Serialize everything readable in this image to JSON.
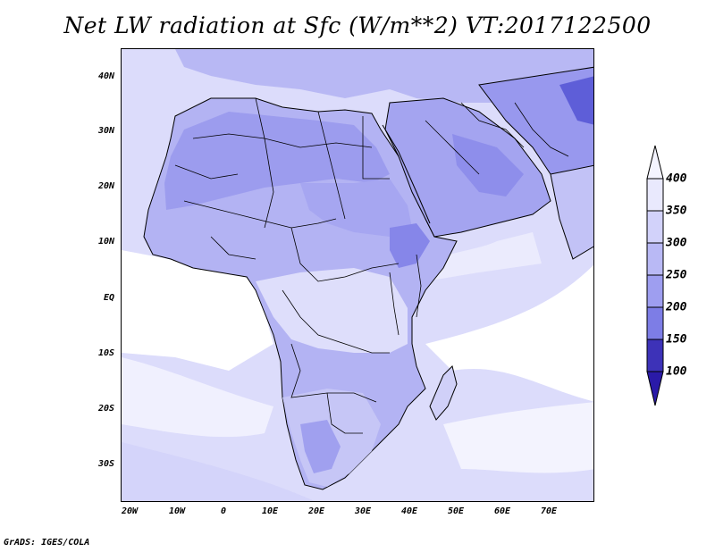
{
  "title": "Net LW radiation at Sfc (W/m**2) VT:2017122500",
  "footer": "GrADS: IGES/COLA",
  "axes": {
    "lat_labels": [
      "40N",
      "30N",
      "20N",
      "10N",
      "EQ",
      "10S",
      "20S",
      "30S"
    ],
    "lon_labels": [
      "20W",
      "10W",
      "0",
      "10E",
      "20E",
      "30E",
      "40E",
      "50E",
      "60E",
      "70E"
    ]
  },
  "colorbar": {
    "labels": [
      "400",
      "350",
      "300",
      "250",
      "200",
      "150",
      "100"
    ],
    "colors": [
      "#e9e9fd",
      "#d2d2fa",
      "#b9b9f5",
      "#9e9ef0",
      "#7d7de6",
      "#5a5ad6",
      "#3d32b8",
      "#2a1aa8"
    ]
  },
  "colors": {
    "ocean_light": "#e4e4fc",
    "ocean_white": "#ffffff",
    "land_mid": "#a8a8f2",
    "land_dark": "#8c8cea",
    "coast": "#000000"
  }
}
